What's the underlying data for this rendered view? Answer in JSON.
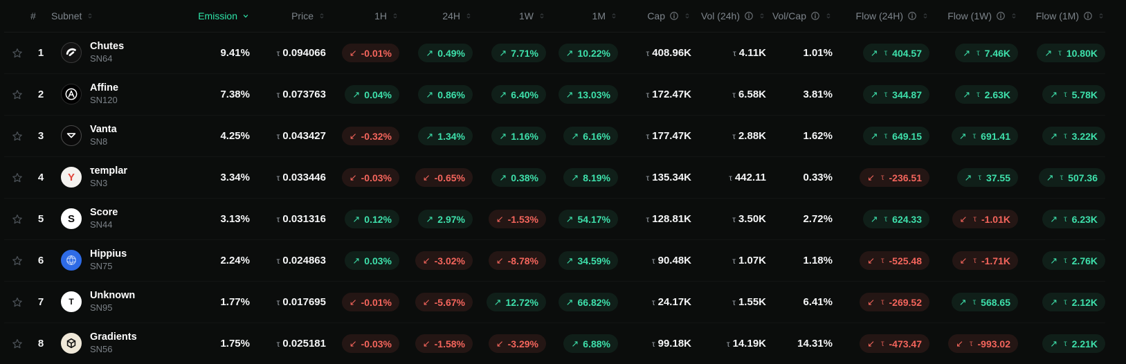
{
  "colors": {
    "background": "#0b0d0c",
    "accent": "#2ee5a9",
    "up_text": "#3ee0ab",
    "up_bg": "rgba(62,224,171,0.09)",
    "down_text": "#f4655c",
    "down_bg": "rgba(244,101,92,0.11)",
    "header_text": "#7e858c",
    "muted_text": "#7b8187"
  },
  "currency_symbol": "τ",
  "table": {
    "columns": [
      {
        "key": "star",
        "label": "",
        "align": "left",
        "sortable": false,
        "info": false
      },
      {
        "key": "rank",
        "label": "#",
        "align": "center",
        "sortable": false,
        "info": false
      },
      {
        "key": "subnet",
        "label": "Subnet",
        "align": "left",
        "sortable": true,
        "info": false
      },
      {
        "key": "emission",
        "label": "Emission",
        "align": "right",
        "sortable": true,
        "info": false,
        "sorted": "desc"
      },
      {
        "key": "price",
        "label": "Price",
        "align": "right",
        "sortable": true,
        "info": false
      },
      {
        "key": "h1",
        "label": "1H",
        "align": "right",
        "sortable": true,
        "info": false
      },
      {
        "key": "h24",
        "label": "24H",
        "align": "right",
        "sortable": true,
        "info": false
      },
      {
        "key": "w1",
        "label": "1W",
        "align": "right",
        "sortable": true,
        "info": false
      },
      {
        "key": "m1",
        "label": "1M",
        "align": "right",
        "sortable": true,
        "info": false
      },
      {
        "key": "cap",
        "label": "Cap",
        "align": "right",
        "sortable": true,
        "info": true
      },
      {
        "key": "vol24",
        "label": "Vol (24h)",
        "align": "right",
        "sortable": true,
        "info": true
      },
      {
        "key": "volcap",
        "label": "Vol/Cap",
        "align": "right",
        "sortable": true,
        "info": true
      },
      {
        "key": "flow24",
        "label": "Flow (24H)",
        "align": "right",
        "sortable": true,
        "info": true
      },
      {
        "key": "flow1w",
        "label": "Flow (1W)",
        "align": "right",
        "sortable": true,
        "info": true
      },
      {
        "key": "flow1m",
        "label": "Flow (1M)",
        "align": "right",
        "sortable": true,
        "info": true
      }
    ],
    "rows": [
      {
        "rank": "1",
        "name": "Chutes",
        "sn": "SN64",
        "logo": {
          "icon": "parachute",
          "bg": "#121212",
          "border": "#3a3a3a",
          "fg": "#ffffff"
        },
        "emission": "9.41%",
        "price": "0.094066",
        "h1": {
          "dir": "down",
          "text": "-0.01%"
        },
        "h24": {
          "dir": "up",
          "text": "0.49%"
        },
        "w1": {
          "dir": "up",
          "text": "7.71%"
        },
        "m1": {
          "dir": "up",
          "text": "10.22%"
        },
        "cap": "408.96K",
        "vol24": "4.11K",
        "volcap": "1.01%",
        "flow24": {
          "dir": "up",
          "text": "404.57"
        },
        "flow1w": {
          "dir": "up",
          "text": "7.46K"
        },
        "flow1m": {
          "dir": "up",
          "text": "10.80K"
        }
      },
      {
        "rank": "2",
        "name": "Affine",
        "sn": "SN120",
        "logo": {
          "icon": "affine",
          "bg": "#000000",
          "border": "#2a2a2a",
          "fg": "#ffffff"
        },
        "emission": "7.38%",
        "price": "0.073763",
        "h1": {
          "dir": "up",
          "text": "0.04%"
        },
        "h24": {
          "dir": "up",
          "text": "0.86%"
        },
        "w1": {
          "dir": "up",
          "text": "6.40%"
        },
        "m1": {
          "dir": "up",
          "text": "13.03%"
        },
        "cap": "172.47K",
        "vol24": "6.58K",
        "volcap": "3.81%",
        "flow24": {
          "dir": "up",
          "text": "344.87"
        },
        "flow1w": {
          "dir": "up",
          "text": "2.63K"
        },
        "flow1m": {
          "dir": "up",
          "text": "5.78K"
        }
      },
      {
        "rank": "3",
        "name": "Vanta",
        "sn": "SN8",
        "logo": {
          "icon": "envelope",
          "bg": "#0a0a0a",
          "border": "#4a4a4a",
          "fg": "#ffffff"
        },
        "emission": "4.25%",
        "price": "0.043427",
        "h1": {
          "dir": "down",
          "text": "-0.32%"
        },
        "h24": {
          "dir": "up",
          "text": "1.34%"
        },
        "w1": {
          "dir": "up",
          "text": "1.16%"
        },
        "m1": {
          "dir": "up",
          "text": "6.16%"
        },
        "cap": "177.47K",
        "vol24": "2.88K",
        "volcap": "1.62%",
        "flow24": {
          "dir": "up",
          "text": "649.15"
        },
        "flow1w": {
          "dir": "up",
          "text": "691.41"
        },
        "flow1m": {
          "dir": "up",
          "text": "3.22K"
        }
      },
      {
        "rank": "4",
        "name": "τemplar",
        "sn": "SN3",
        "logo": {
          "icon": "letter",
          "letter": "Y",
          "bg": "#f4f2ef",
          "border": "#f4f2ef",
          "fg": "#e0443a"
        },
        "emission": "3.34%",
        "price": "0.033446",
        "h1": {
          "dir": "down",
          "text": "-0.03%"
        },
        "h24": {
          "dir": "down",
          "text": "-0.65%"
        },
        "w1": {
          "dir": "up",
          "text": "0.38%"
        },
        "m1": {
          "dir": "up",
          "text": "8.19%"
        },
        "cap": "135.34K",
        "vol24": "442.11",
        "volcap": "0.33%",
        "flow24": {
          "dir": "down",
          "text": "-236.51"
        },
        "flow1w": {
          "dir": "up",
          "text": "37.55"
        },
        "flow1m": {
          "dir": "up",
          "text": "507.36"
        }
      },
      {
        "rank": "5",
        "name": "Score",
        "sn": "SN44",
        "logo": {
          "icon": "letter",
          "letter": "S",
          "bg": "#ffffff",
          "border": "#ffffff",
          "fg": "#0a0a0a"
        },
        "emission": "3.13%",
        "price": "0.031316",
        "h1": {
          "dir": "up",
          "text": "0.12%"
        },
        "h24": {
          "dir": "up",
          "text": "2.97%"
        },
        "w1": {
          "dir": "down",
          "text": "-1.53%"
        },
        "m1": {
          "dir": "up",
          "text": "54.17%"
        },
        "cap": "128.81K",
        "vol24": "3.50K",
        "volcap": "2.72%",
        "flow24": {
          "dir": "up",
          "text": "624.33"
        },
        "flow1w": {
          "dir": "down",
          "text": "-1.01K"
        },
        "flow1m": {
          "dir": "up",
          "text": "6.23K"
        }
      },
      {
        "rank": "6",
        "name": "Hippius",
        "sn": "SN75",
        "logo": {
          "icon": "globe",
          "bg": "#2e6be6",
          "border": "#2e6be6",
          "fg": "rgba(255,255,255,0.6)"
        },
        "emission": "2.24%",
        "price": "0.024863",
        "h1": {
          "dir": "up",
          "text": "0.03%"
        },
        "h24": {
          "dir": "down",
          "text": "-3.02%"
        },
        "w1": {
          "dir": "down",
          "text": "-8.78%"
        },
        "m1": {
          "dir": "up",
          "text": "34.59%"
        },
        "cap": "90.48K",
        "vol24": "1.07K",
        "volcap": "1.18%",
        "flow24": {
          "dir": "down",
          "text": "-525.48"
        },
        "flow1w": {
          "dir": "down",
          "text": "-1.71K"
        },
        "flow1m": {
          "dir": "up",
          "text": "2.76K"
        }
      },
      {
        "rank": "7",
        "name": "Unknown",
        "sn": "SN95",
        "logo": {
          "icon": "letter",
          "letter": "T",
          "bg": "#ffffff",
          "border": "#ffffff",
          "fg": "#111111",
          "small": true
        },
        "emission": "1.77%",
        "price": "0.017695",
        "h1": {
          "dir": "down",
          "text": "-0.01%"
        },
        "h24": {
          "dir": "down",
          "text": "-5.67%"
        },
        "w1": {
          "dir": "up",
          "text": "12.72%"
        },
        "m1": {
          "dir": "up",
          "text": "66.82%"
        },
        "cap": "24.17K",
        "vol24": "1.55K",
        "volcap": "6.41%",
        "flow24": {
          "dir": "down",
          "text": "-269.52"
        },
        "flow1w": {
          "dir": "up",
          "text": "568.65"
        },
        "flow1m": {
          "dir": "up",
          "text": "2.12K"
        }
      },
      {
        "rank": "8",
        "name": "Gradients",
        "sn": "SN56",
        "logo": {
          "icon": "cube",
          "bg": "#efe8d8",
          "border": "#efe8d8",
          "fg": "#111111"
        },
        "emission": "1.75%",
        "price": "0.025181",
        "h1": {
          "dir": "down",
          "text": "-0.03%"
        },
        "h24": {
          "dir": "down",
          "text": "-1.58%"
        },
        "w1": {
          "dir": "down",
          "text": "-3.29%"
        },
        "m1": {
          "dir": "up",
          "text": "6.88%"
        },
        "cap": "99.18K",
        "vol24": "14.19K",
        "volcap": "14.31%",
        "flow24": {
          "dir": "down",
          "text": "-473.47"
        },
        "flow1w": {
          "dir": "down",
          "text": "-993.02"
        },
        "flow1m": {
          "dir": "up",
          "text": "2.21K"
        }
      }
    ]
  },
  "glyphs": {
    "up_arrow": "↗",
    "down_arrow": "↙"
  }
}
